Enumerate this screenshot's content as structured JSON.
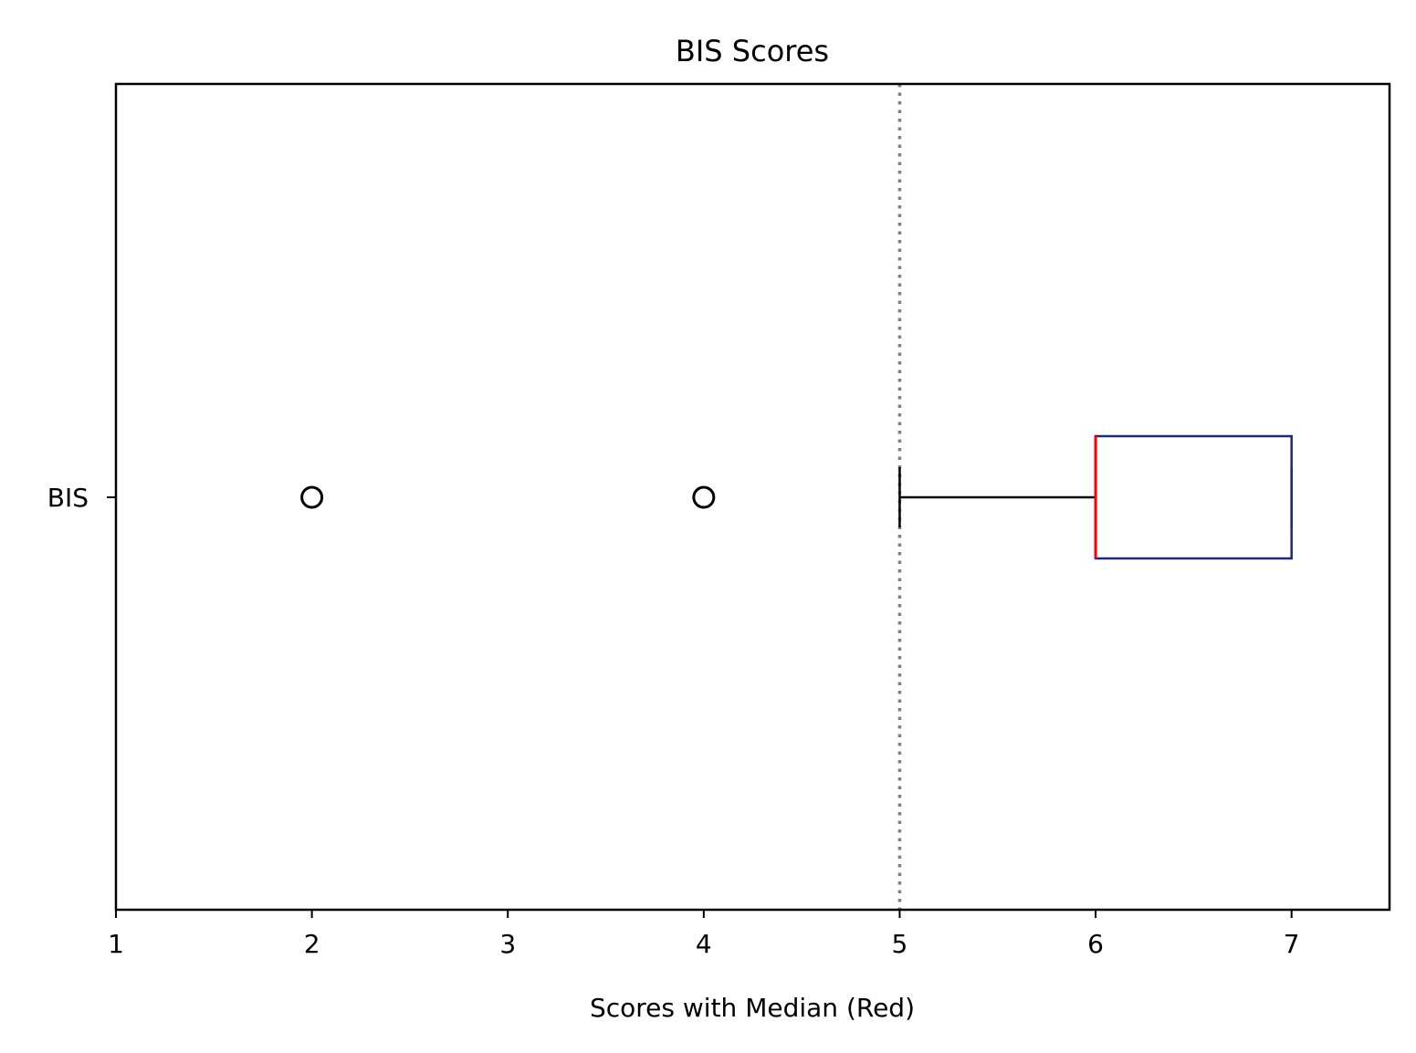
{
  "chart_data": {
    "type": "boxplot",
    "orientation": "horizontal",
    "title": "BIS Scores",
    "xlabel": "Scores with Median (Red)",
    "ylabel": "",
    "xlim": [
      1,
      7.5
    ],
    "xticks": [
      1,
      2,
      3,
      4,
      5,
      6,
      7
    ],
    "categories": [
      "BIS"
    ],
    "boxes": [
      {
        "category": "BIS",
        "whisker_low": 5,
        "q1": 6,
        "median": 6,
        "q3": 7,
        "whisker_high": 7,
        "outliers": [
          2,
          4
        ]
      }
    ],
    "reference_line": {
      "x": 5,
      "style": "dotted",
      "color": "#808080"
    },
    "grid": false,
    "legend": "none",
    "colors": {
      "box_edge": "#1f2a6e",
      "median": "#ff0000",
      "whisker": "#000000",
      "outlier": "#000000"
    }
  }
}
